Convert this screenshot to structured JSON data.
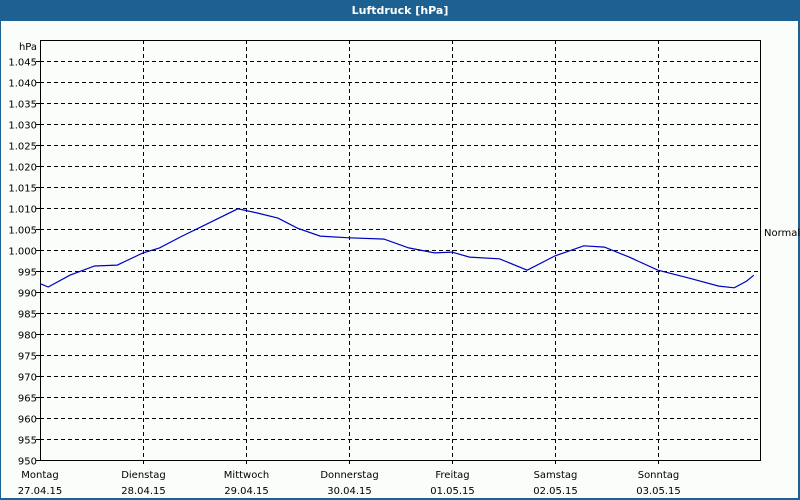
{
  "window": {
    "title": "Luftdruck [hPa]"
  },
  "colors": {
    "frame": "#1d6193",
    "background": "#fbfdfa",
    "line": "#0000c0",
    "grid": "#000000"
  },
  "chart_data": {
    "type": "line",
    "title": "Luftdruck [hPa]",
    "xlabel": "",
    "ylabel": "hPa",
    "ylim": [
      950,
      1045
    ],
    "yticks": [
      "1.045",
      "1.040",
      "1.035",
      "1.030",
      "1.025",
      "1.020",
      "1.015",
      "1.010",
      "1.005",
      "1.000",
      "995",
      "990",
      "985",
      "980",
      "975",
      "970",
      "965",
      "960",
      "955",
      "950"
    ],
    "categories": [
      {
        "day": "Montag",
        "date": "27.04.15"
      },
      {
        "day": "Dienstag",
        "date": "28.04.15"
      },
      {
        "day": "Mittwoch",
        "date": "29.04.15"
      },
      {
        "day": "Donnerstag",
        "date": "30.04.15"
      },
      {
        "day": "Freitag",
        "date": "01.05.15"
      },
      {
        "day": "Samstag",
        "date": "02.05.15"
      },
      {
        "day": "Sonntag",
        "date": "03.05.15"
      }
    ],
    "grid": true,
    "annotation": "Normal",
    "series": [
      {
        "name": "Luftdruck",
        "x": [
          0.0,
          0.08,
          0.29,
          0.53,
          0.75,
          1.0,
          1.16,
          1.38,
          1.58,
          1.77,
          1.92,
          2.11,
          2.31,
          2.5,
          2.72,
          3.0,
          3.34,
          3.58,
          3.83,
          4.0,
          4.17,
          4.46,
          4.73,
          5.0,
          5.28,
          5.48,
          5.72,
          6.0,
          6.3,
          6.59,
          6.74,
          6.86,
          6.93
        ],
        "values": [
          992.0,
          991.2,
          994.0,
          996.2,
          996.4,
          999.3,
          1000.5,
          1003.3,
          1005.7,
          1008.0,
          1009.8,
          1008.8,
          1007.6,
          1005.2,
          1003.3,
          1002.9,
          1002.6,
          1000.5,
          999.3,
          999.5,
          998.3,
          997.9,
          995.2,
          998.6,
          1001.0,
          1000.7,
          998.3,
          995.2,
          993.3,
          991.4,
          991.0,
          992.6,
          994.0
        ]
      }
    ]
  }
}
